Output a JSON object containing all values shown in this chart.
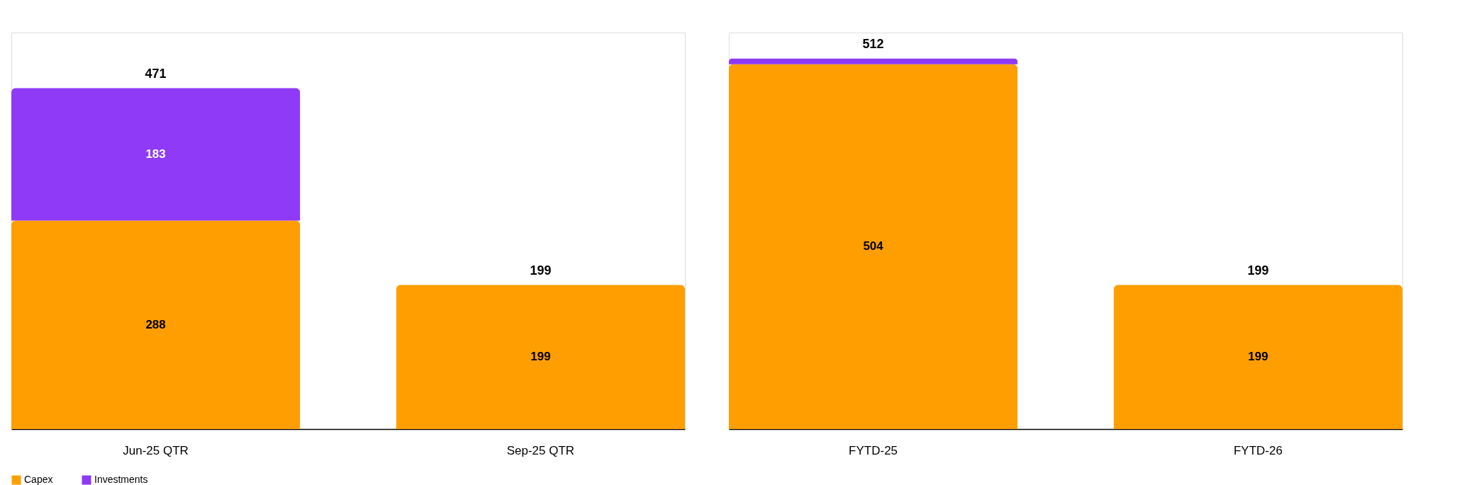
{
  "chart_data": [
    {
      "type": "bar",
      "stacked": true,
      "categories": [
        "Jun-25 QTR",
        "Sep-25 QTR"
      ],
      "series": [
        {
          "name": "Capex",
          "color": "#ff9e00",
          "values": [
            288,
            199
          ],
          "value_labels": [
            "288",
            "199"
          ]
        },
        {
          "name": "Investments",
          "color": "#8e3af6",
          "values": [
            183,
            null
          ],
          "value_labels": [
            "183",
            null
          ]
        }
      ],
      "totals": [
        "471",
        "199"
      ],
      "legend": "bottom left",
      "grid": false
    },
    {
      "type": "bar",
      "stacked": true,
      "categories": [
        "FYTD-25",
        "FYTD-26"
      ],
      "series": [
        {
          "name": "Capex",
          "color": "#ff9e00",
          "values": [
            504,
            199
          ],
          "value_labels": [
            "504",
            "199"
          ]
        },
        {
          "name": "Investments",
          "color": "#8e3af6",
          "values": [
            8,
            null
          ],
          "value_labels": [
            null,
            null
          ]
        }
      ],
      "totals": [
        "512",
        "199"
      ],
      "legend": "bottom left",
      "grid": false
    }
  ]
}
